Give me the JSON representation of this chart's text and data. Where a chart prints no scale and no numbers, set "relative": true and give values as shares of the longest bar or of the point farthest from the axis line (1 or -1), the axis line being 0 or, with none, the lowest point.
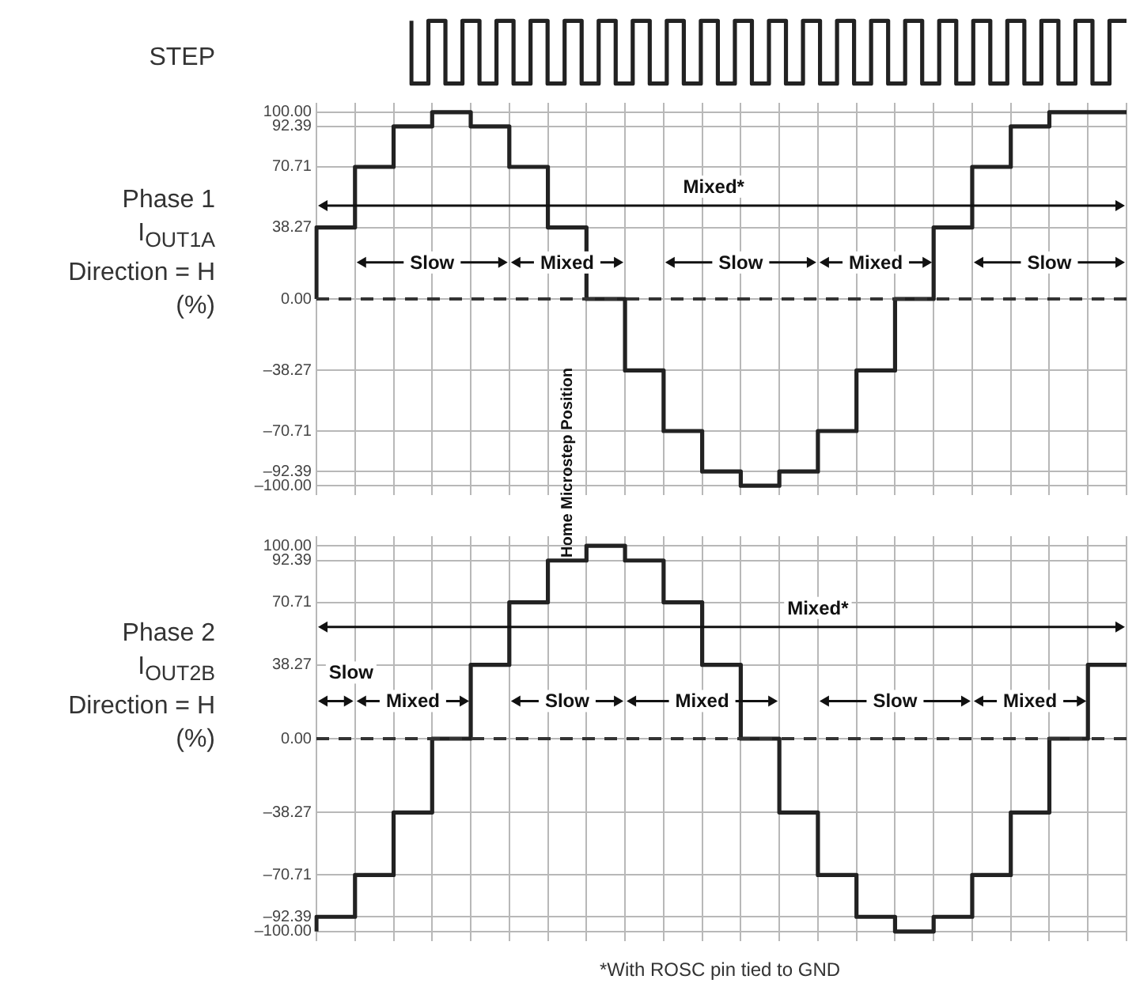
{
  "chart_data": [
    {
      "type": "step",
      "ylabel": "STEP",
      "relative": true,
      "tick_labels": false,
      "grid": false,
      "marker": "none",
      "categories": [
        null,
        null,
        null,
        null,
        null,
        null,
        null,
        null,
        null,
        null,
        null,
        null,
        null,
        null,
        null,
        null,
        null,
        null,
        null,
        null,
        null,
        null,
        null,
        null,
        null,
        null,
        null,
        null,
        null,
        null,
        null,
        null,
        null,
        null,
        null,
        null,
        null,
        null,
        null,
        null,
        null,
        null,
        null
      ],
      "values": [
        1,
        0,
        1,
        0,
        1,
        0,
        1,
        0,
        1,
        0,
        1,
        0,
        1,
        0,
        1,
        0,
        1,
        0,
        1,
        0,
        1,
        0,
        1,
        0,
        1,
        0,
        1,
        0,
        1,
        0,
        1,
        0,
        1,
        0,
        1,
        0,
        1,
        0,
        1,
        0,
        1,
        0,
        1
      ],
      "color": "#222222"
    },
    {
      "type": "step",
      "ylabel": "Phase 1\nI$_{OUT1A}$\nDirection = H\n(%)",
      "tick_labels": "y",
      "grid": true,
      "marker": "none",
      "ylim": [
        -105,
        105
      ],
      "yticks": [
        {
          "value": 100,
          "label": "100.00"
        },
        {
          "value": 92.39,
          "label": "92.39"
        },
        {
          "value": 70.71,
          "label": "70.71"
        },
        {
          "value": 38.27,
          "label": "38.27"
        },
        {
          "value": 0,
          "label": "0.00"
        },
        {
          "value": -38.27,
          "label": "–38.27"
        },
        {
          "value": -70.71,
          "label": "–70.71"
        },
        {
          "value": -92.39,
          "label": "–92.39"
        },
        {
          "value": -100,
          "label": "–100.00"
        }
      ],
      "categories": [
        null,
        null,
        null,
        null,
        null,
        null,
        null,
        null,
        null,
        null,
        null,
        null,
        null,
        null,
        null,
        null,
        null,
        null,
        null,
        null,
        null,
        null
      ],
      "values": [
        0,
        38.27,
        70.71,
        92.39,
        100,
        92.39,
        70.71,
        38.27,
        0,
        -38.27,
        -70.71,
        -92.39,
        -100,
        -92.39,
        -70.71,
        -38.27,
        0,
        38.27,
        70.71,
        92.39,
        100,
        100
      ],
      "color": "#222222",
      "ref_lines": [
        {
          "axis": "y",
          "value": 0,
          "line_style": "dashed",
          "color": "#333333"
        }
      ],
      "annotations": [
        "Mixed*",
        "Slow",
        "Mixed",
        "Slow",
        "Mixed",
        "Slow",
        "Home Microstep Position"
      ]
    },
    {
      "type": "step",
      "ylabel": "Phase 2\nI$_{OUT2B}$\nDirection = H\n(%)",
      "tick_labels": "y",
      "grid": true,
      "marker": "none",
      "ylim": [
        -105,
        105
      ],
      "yticks": [
        {
          "value": 100,
          "label": "100.00"
        },
        {
          "value": 92.39,
          "label": "92.39"
        },
        {
          "value": 70.71,
          "label": "70.71"
        },
        {
          "value": 38.27,
          "label": "38.27"
        },
        {
          "value": 0,
          "label": "0.00"
        },
        {
          "value": -38.27,
          "label": "–38.27"
        },
        {
          "value": -70.71,
          "label": "–70.71"
        },
        {
          "value": -92.39,
          "label": "–92.39"
        },
        {
          "value": -100,
          "label": "–100.00"
        }
      ],
      "categories": [
        null,
        null,
        null,
        null,
        null,
        null,
        null,
        null,
        null,
        null,
        null,
        null,
        null,
        null,
        null,
        null,
        null,
        null,
        null,
        null,
        null,
        null
      ],
      "values": [
        -100,
        -92.39,
        -70.71,
        -38.27,
        0,
        38.27,
        70.71,
        92.39,
        100,
        92.39,
        70.71,
        38.27,
        0,
        -38.27,
        -70.71,
        -92.39,
        -100,
        -92.39,
        -70.71,
        -38.27,
        0,
        38.27
      ],
      "color": "#222222",
      "ref_lines": [
        {
          "axis": "y",
          "value": 0,
          "line_style": "dashed",
          "color": "#333333"
        }
      ],
      "annotations": [
        "Mixed*",
        "Slow",
        "Mixed",
        "Slow",
        "Mixed",
        "Slow",
        "Mixed",
        "*With ROSC pin tied to GND"
      ]
    }
  ]
}
